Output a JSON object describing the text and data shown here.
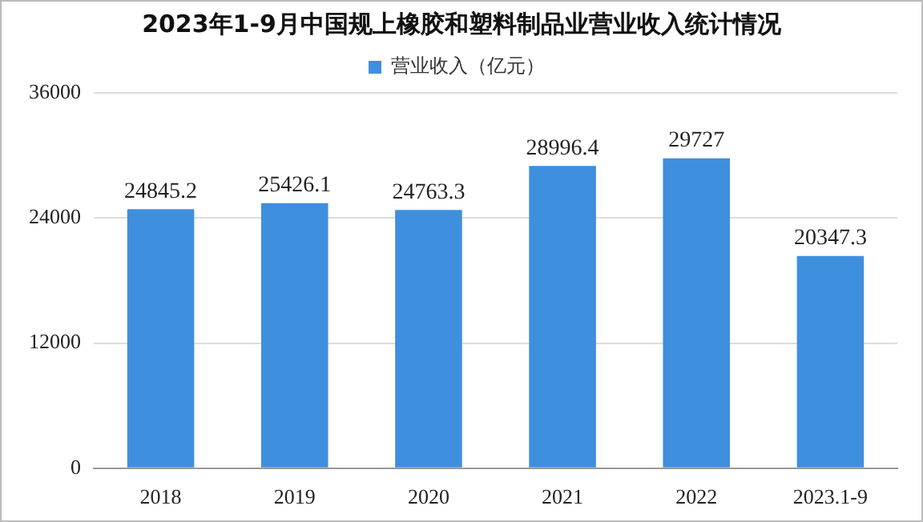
{
  "chart_data": {
    "type": "bar",
    "title": "2023年1-9月中国规上橡胶和塑料制品业营业收入统计情况",
    "categories": [
      "2018",
      "2019",
      "2020",
      "2021",
      "2022",
      "2023.1-9"
    ],
    "series": [
      {
        "name": "营业收入（亿元）",
        "color": "#3f8fdf",
        "values": [
          24845.2,
          25426.1,
          24763.3,
          28996.4,
          29727,
          20347.3
        ]
      }
    ],
    "ylim": [
      0,
      36000
    ],
    "yticks": [
      0,
      12000,
      24000,
      36000
    ],
    "grid": "y",
    "legend": "top",
    "data_labels": true
  }
}
